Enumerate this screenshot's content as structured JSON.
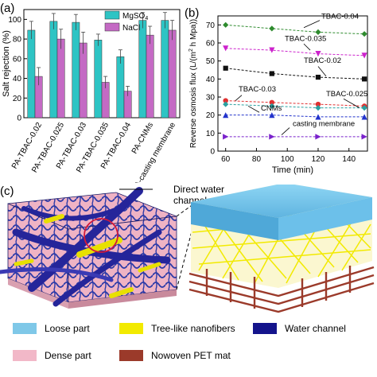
{
  "panels": {
    "a": "(a)",
    "b": "(b)",
    "c": "(c)"
  },
  "chart_data": [
    {
      "type": "bar",
      "ylabel": "Salt rejection (%)",
      "ylim": [
        0,
        110
      ],
      "yticks": [
        0,
        20,
        40,
        60,
        80,
        100
      ],
      "categories": [
        "PA-TBAC-0.02",
        "PA-TBAC-0.025",
        "PA-TBAC-0.03",
        "PA-TBAC-0.035",
        "PA-TBAC-0.04",
        "PA-CNMs",
        "PA-casting membrane"
      ],
      "series": [
        {
          "name": "MgSO4",
          "name_main": "MgSO",
          "name_sub": "4",
          "color": "#2ec4c4",
          "values": [
            89,
            98,
            97,
            79,
            62,
            99,
            99
          ],
          "errors": [
            9,
            8,
            8,
            6,
            7,
            8,
            8
          ]
        },
        {
          "name": "NaCl",
          "color": "#c46ac4",
          "values": [
            42,
            80,
            76,
            36,
            27,
            84,
            89
          ],
          "errors": [
            9,
            10,
            11,
            6,
            5,
            9,
            10
          ]
        }
      ],
      "grid": false,
      "legend": "top-right"
    },
    {
      "type": "line",
      "xlabel": "Time (min)",
      "ylabel_main": "Reverse osmosis flux (L/(m",
      "ylabel_sup": "2",
      "ylabel_end": " h Mpa))",
      "xlim": [
        55,
        152
      ],
      "xticks": [
        60,
        80,
        100,
        120,
        140
      ],
      "ylim": [
        0,
        75
      ],
      "yticks": [
        0,
        10,
        20,
        30,
        40,
        50,
        60,
        70
      ],
      "x": [
        60,
        90,
        120,
        150
      ],
      "series": [
        {
          "name": "TBAC-0.04",
          "color": "#2e8b2e",
          "marker": "diamond",
          "values": [
            70,
            68,
            66,
            65
          ]
        },
        {
          "name": "TBAC-0.035",
          "color": "#cc22cc",
          "marker": "triangle-down",
          "values": [
            57,
            56,
            54,
            53
          ]
        },
        {
          "name": "TBAC-0.02",
          "color": "#111111",
          "marker": "square",
          "values": [
            46,
            43,
            41,
            40
          ]
        },
        {
          "name": "TBAC-0.03",
          "color": "#e03030",
          "marker": "circle",
          "values": [
            28,
            27,
            26,
            25
          ]
        },
        {
          "name": "TBAC-0.025",
          "color": "#2aa0a0",
          "marker": "diamond",
          "values": [
            26,
            25,
            24,
            24
          ]
        },
        {
          "name": "CNMs",
          "color": "#2233cc",
          "marker": "triangle-up",
          "values": [
            20,
            20,
            19,
            19
          ]
        },
        {
          "name": "casting membrane",
          "color": "#7a22cc",
          "marker": "triangle-right",
          "values": [
            8,
            8,
            8,
            8
          ]
        }
      ]
    }
  ],
  "schematic": {
    "callout": [
      "Direct water",
      "channels"
    ]
  },
  "legend_items": [
    {
      "label": "Loose part",
      "color": "#7fc8e8"
    },
    {
      "label": "Tree-like nanofibers",
      "color": "#f2ea00"
    },
    {
      "label": "Water channel",
      "color": "#14148c"
    },
    {
      "label": "Dense part",
      "color": "#f2b8c8"
    },
    {
      "label": "Nowoven PET mat",
      "color": "#9b3a2a"
    }
  ]
}
